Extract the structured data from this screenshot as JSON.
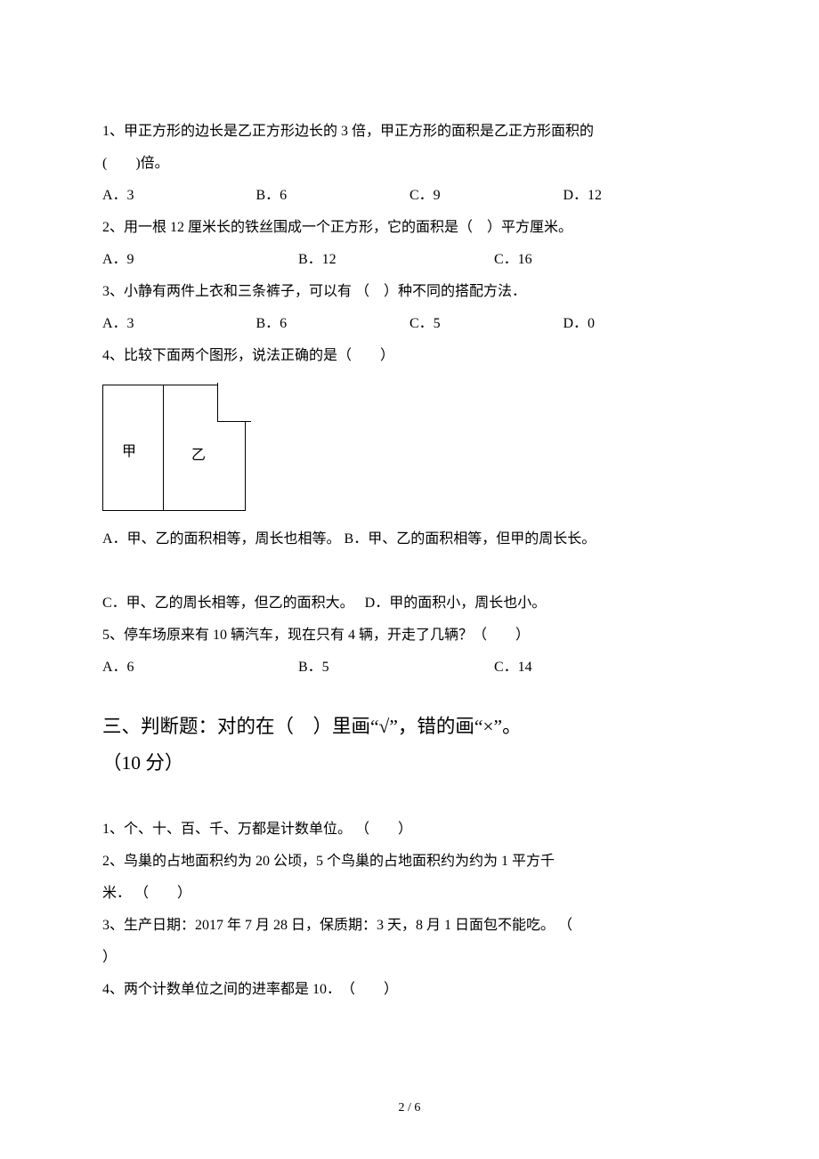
{
  "q1": {
    "text1": "1、甲正方形的边长是乙正方形边长的 3 倍，甲正方形的面积是乙正方形面积的",
    "text2": "(　　)倍。",
    "a": "A．3",
    "b": "B．6",
    "c": "C．9",
    "d": "D．12"
  },
  "q2": {
    "text": "2、用一根 12 厘米长的铁丝围成一个正方形，它的面积是（　）平方厘米。",
    "a": "A．9",
    "b": "B．12",
    "c": "C．16"
  },
  "q3": {
    "text": "3、小静有两件上衣和三条裤子，可以有 （　）种不同的搭配方法．",
    "a": "A．3",
    "b": "B．6",
    "c": "C．5",
    "d": "D．0"
  },
  "q4": {
    "text": "4、比较下面两个图形，说法正确的是（　　）",
    "fig_jia": "甲",
    "fig_yi": "乙",
    "a": "A．甲、乙的面积相等，周长也相等。 B．甲、乙的面积相等，但甲的周长长。",
    "c": "C．甲、乙的周长相等，但乙的面积大。　 D．甲的面积小，周长也小。"
  },
  "q5": {
    "text": "5、停车场原来有 10 辆汽车，现在只有 4 辆，开走了几辆？（　　）",
    "a": "A．6",
    "b": "B．5",
    "c": "C．14"
  },
  "section3": {
    "title_line1": "三、判断题：对的在（　）里画“√”，错的画“×”。",
    "title_line2": "（10 分）"
  },
  "judge": {
    "j1": "1、个、十、百、千、万都是计数单位。 （　　）",
    "j2a": "2、鸟巢的占地面积约为 20 公顷，5 个鸟巢的占地面积约为约为 1 平方千",
    "j2b": "米． （　　）",
    "j3a": "3、生产日期：2017 年 7 月 28 日，保质期：3 天，8 月 1 日面包不能吃。 （　",
    "j3b": "）",
    "j4": "4、两个计数单位之间的进率都是 10．　（　　）"
  },
  "footer": "2 / 6",
  "colors": {
    "text": "#000000",
    "background": "#ffffff",
    "border": "#000000"
  }
}
